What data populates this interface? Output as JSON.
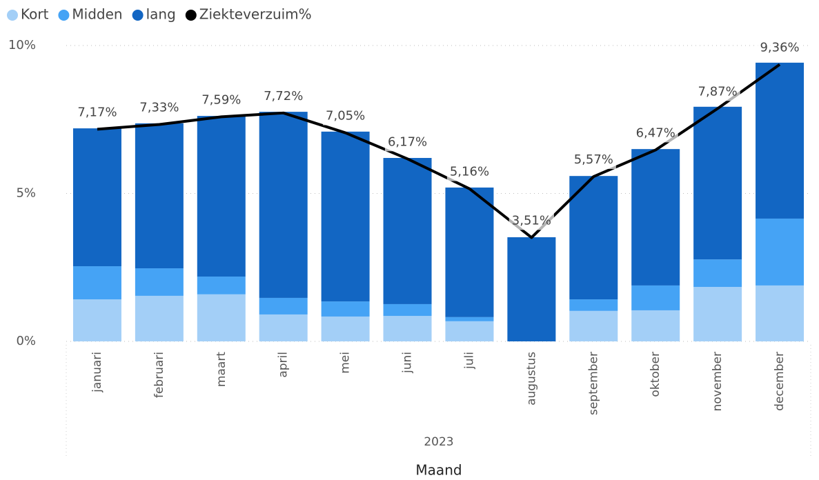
{
  "chart_data": {
    "type": "bar_line",
    "categories": [
      "januari",
      "februari",
      "maart",
      "april",
      "mei",
      "juni",
      "juli",
      "augustus",
      "september",
      "oktober",
      "november",
      "december"
    ],
    "group_label": "2023",
    "x_label": "Maand",
    "series": [
      {
        "name": "Kort",
        "color": "#a3cff7",
        "values": [
          1.42,
          1.54,
          1.59,
          0.91,
          0.84,
          0.86,
          0.68,
          0,
          1.03,
          1.05,
          1.84,
          1.89
        ]
      },
      {
        "name": "Midden",
        "color": "#45a3f5",
        "values": [
          1.12,
          0.93,
          0.6,
          0.56,
          0.51,
          0.4,
          0.14,
          0,
          0.39,
          0.84,
          0.93,
          2.26
        ]
      },
      {
        "name": "lang",
        "color": "#1266c3",
        "values": [
          4.66,
          4.9,
          5.43,
          6.29,
          5.74,
          4.94,
          4.38,
          3.52,
          4.17,
          4.61,
          5.16,
          5.27
        ]
      },
      {
        "name": "Ziekteverzuim%",
        "color": "#000000",
        "type": "line",
        "values": [
          7.17,
          7.33,
          7.59,
          7.72,
          7.05,
          6.17,
          5.16,
          3.51,
          5.57,
          6.47,
          7.87,
          9.36
        ],
        "value_labels": [
          "7,17%",
          "7,33%",
          "7,59%",
          "7,72%",
          "7,05%",
          "6,17%",
          "5,16%",
          "3,51%",
          "5,57%",
          "6,47%",
          "7,87%",
          "9,36%"
        ]
      }
    ],
    "ylim": [
      0,
      10
    ],
    "yticks": [
      {
        "value": 0,
        "label": "0%"
      },
      {
        "value": 5,
        "label": "5%"
      },
      {
        "value": 10,
        "label": "10%"
      }
    ],
    "grid": true,
    "legend": "top-left"
  }
}
